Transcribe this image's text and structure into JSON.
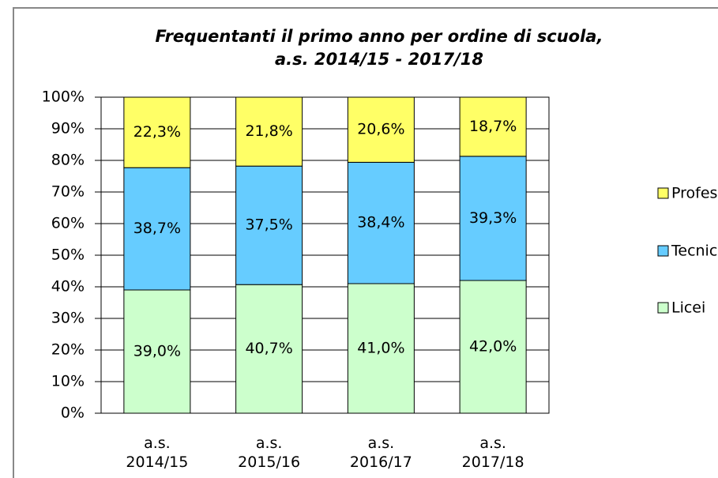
{
  "chart_data": {
    "type": "stacked_bar",
    "title": [
      "Frequentanti il primo anno per ordine di scuola,",
      "a.s. 2014/15 - 2017/18"
    ],
    "categories": [
      "a.s. 2014/15",
      "a.s. 2015/16",
      "a.s. 2016/17",
      "a.s. 2017/18"
    ],
    "series": [
      {
        "name": "Licei",
        "color": "#ccffcc",
        "values": [
          39.0,
          40.7,
          41.0,
          42.0
        ],
        "value_labels": [
          "39,0%",
          "40,7%",
          "41,0%",
          "42,0%"
        ]
      },
      {
        "name": "Tecnici",
        "color": "#66ccff",
        "values": [
          38.7,
          37.5,
          38.4,
          39.3
        ],
        "value_labels": [
          "38,7%",
          "37,5%",
          "38,4%",
          "39,3%"
        ]
      },
      {
        "name": "Professional",
        "color": "#ffff66",
        "values": [
          22.3,
          21.8,
          20.6,
          18.7
        ],
        "value_labels": [
          "22,3%",
          "21,8%",
          "20,6%",
          "18,7%"
        ]
      }
    ],
    "ylim": [
      0,
      100
    ],
    "yticks": [
      {
        "value": 0,
        "label": "0%"
      },
      {
        "value": 10,
        "label": "10%"
      },
      {
        "value": 20,
        "label": "20%"
      },
      {
        "value": 30,
        "label": "30%"
      },
      {
        "value": 40,
        "label": "40%"
      },
      {
        "value": 50,
        "label": "50%"
      },
      {
        "value": 60,
        "label": "60%"
      },
      {
        "value": 70,
        "label": "70%"
      },
      {
        "value": 80,
        "label": "80%"
      },
      {
        "value": 90,
        "label": "90%"
      },
      {
        "value": 100,
        "label": "100%"
      }
    ],
    "grid": true,
    "legend": "right"
  }
}
